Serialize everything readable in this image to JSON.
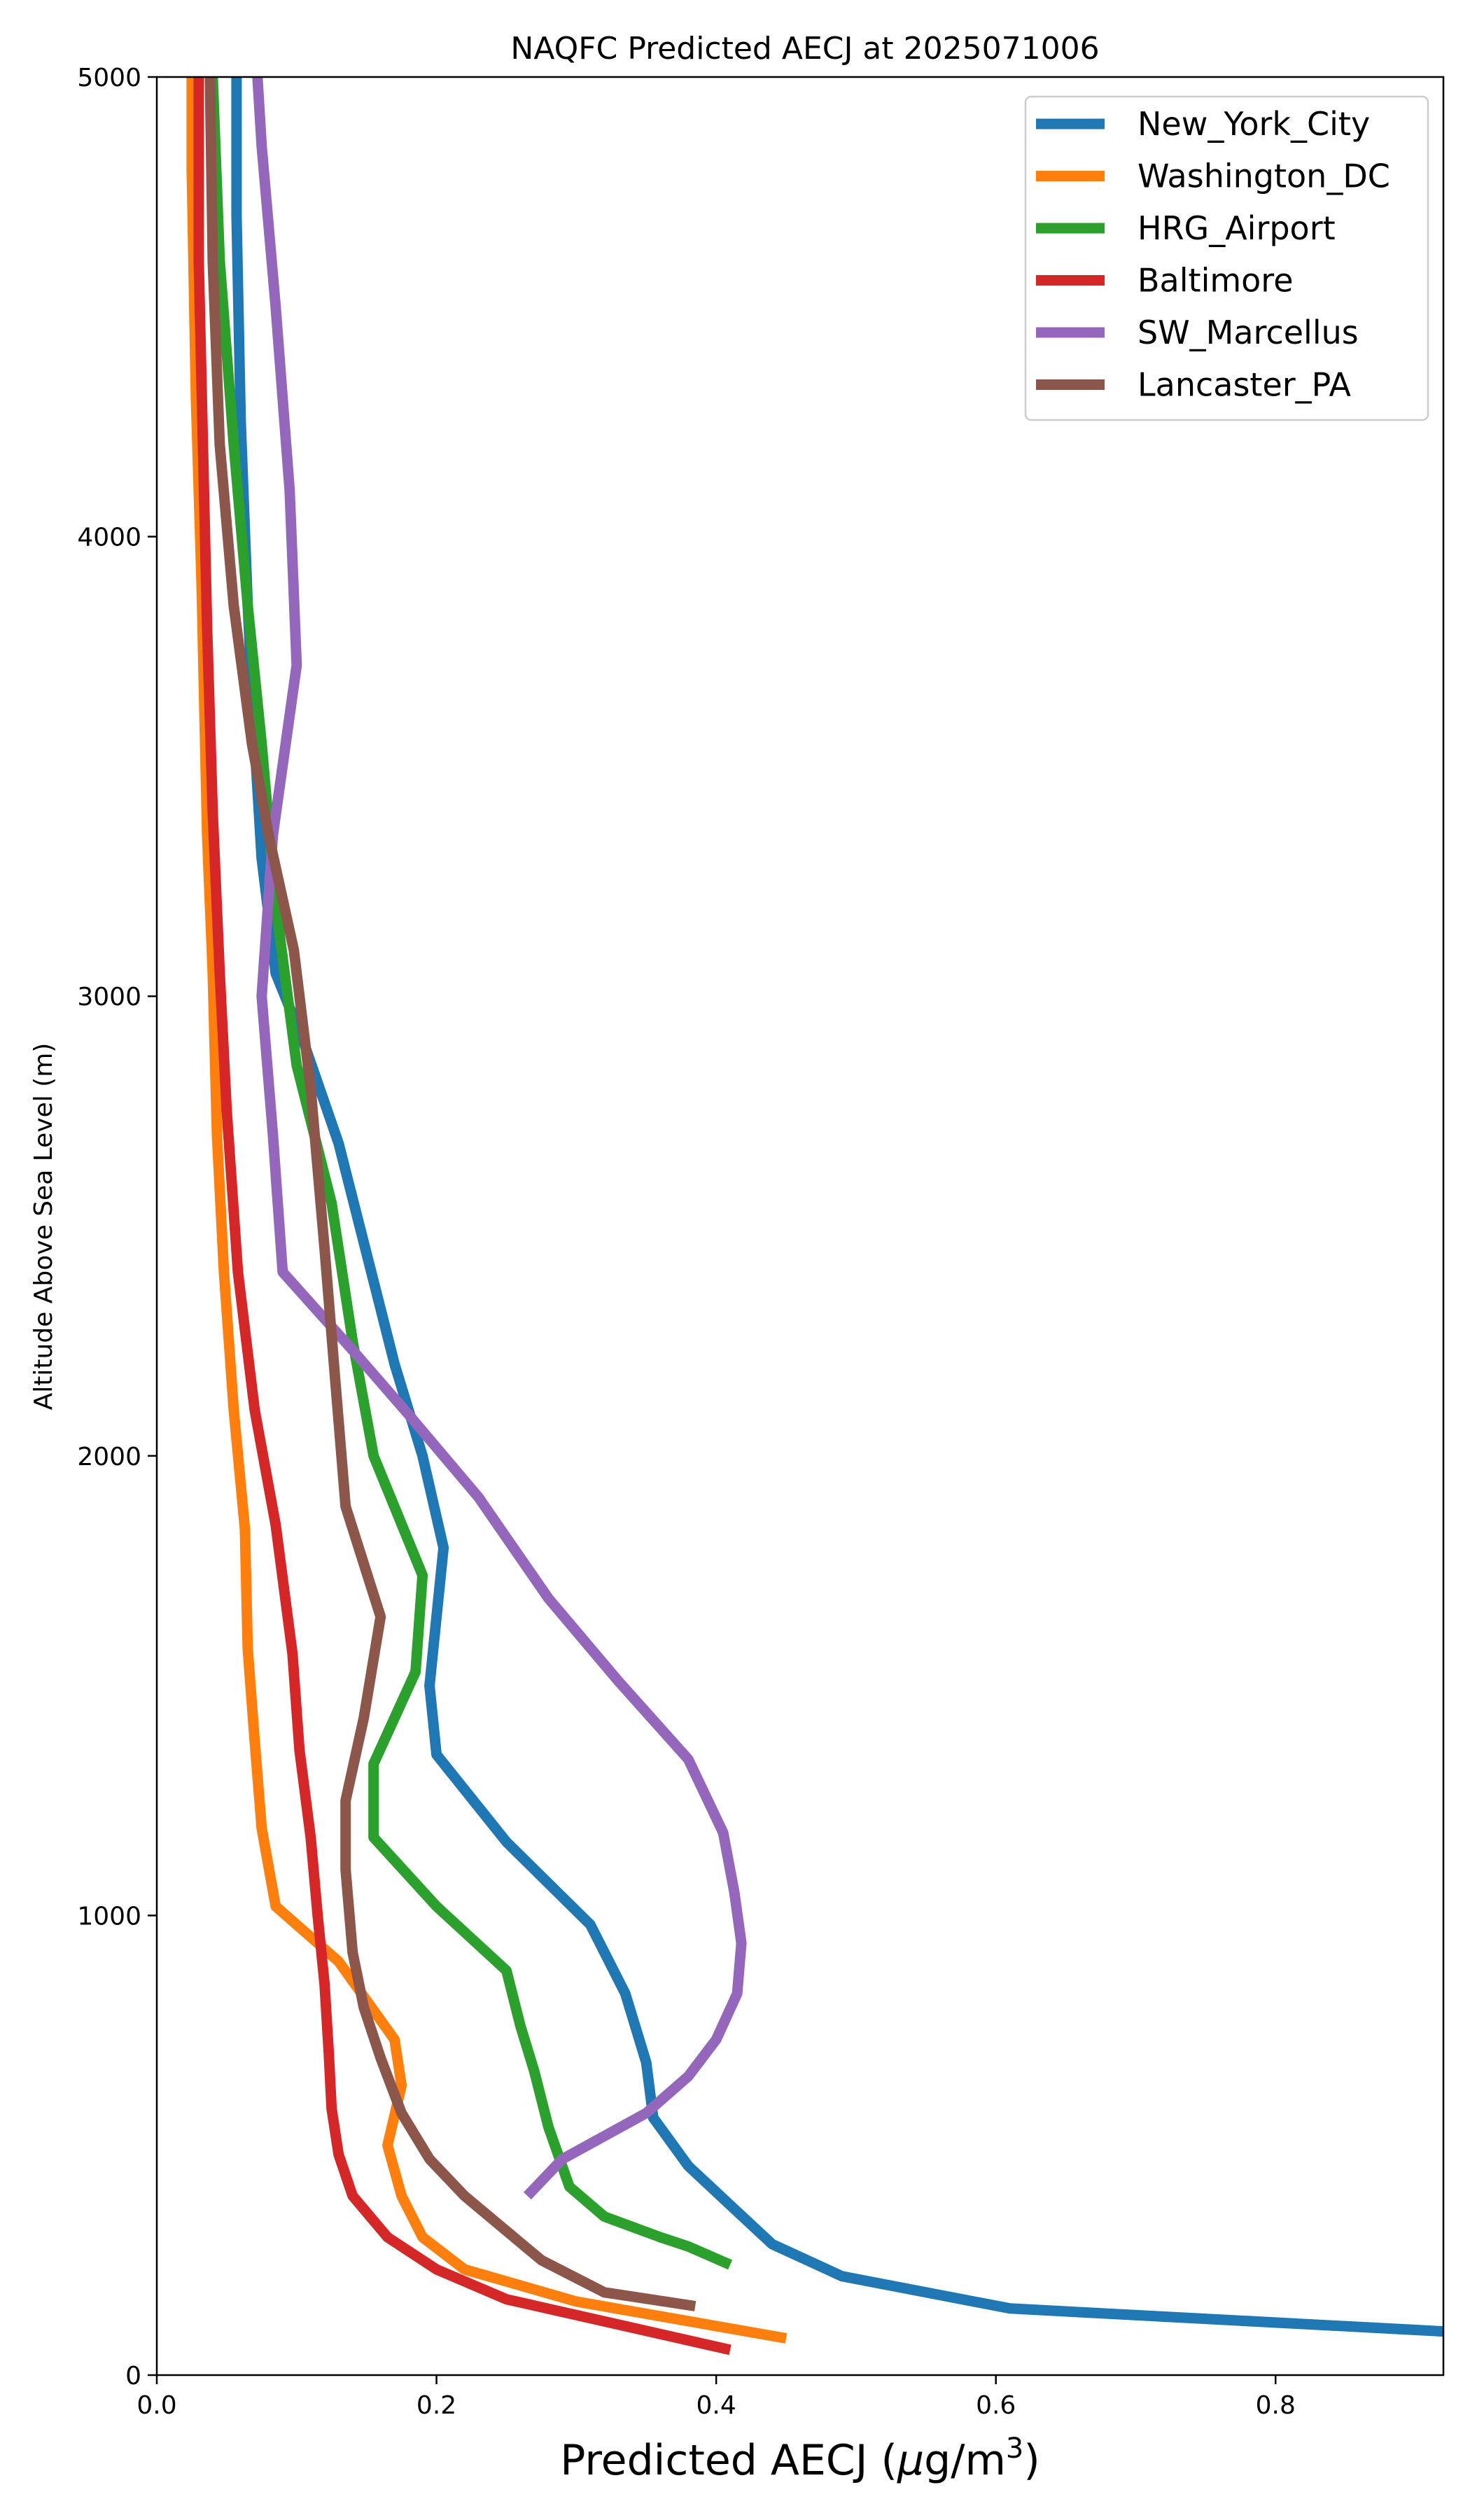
{
  "chart_data": {
    "type": "line",
    "title": "NAQFC Predicted AECJ at 2025071006",
    "xlabel": "Predicted AECJ (μg/m3)",
    "xlabel_parts": {
      "main": "Predicted AECJ (",
      "mu": "μ",
      "unit": "g/m",
      "exp": "3",
      "close": ")"
    },
    "ylabel": "Altitude Above Sea Level (m)",
    "xlim": [
      0,
      0.92
    ],
    "ylim": [
      0,
      5000
    ],
    "xticks": [
      "0.0",
      "0.2",
      "0.4",
      "0.6",
      "0.8"
    ],
    "xtick_values": [
      0,
      0.2,
      0.4,
      0.6,
      0.8
    ],
    "yticks": [
      "0",
      "1000",
      "2000",
      "3000",
      "4000",
      "5000"
    ],
    "ytick_values": [
      0,
      1000,
      2000,
      3000,
      4000,
      5000
    ],
    "grid": false,
    "legend_position": "top-right",
    "series": [
      {
        "name": "New_York_City",
        "color": "#1f77b4",
        "points": [
          [
            0.92,
            95
          ],
          [
            0.61,
            145
          ],
          [
            0.49,
            215
          ],
          [
            0.44,
            285
          ],
          [
            0.41,
            370
          ],
          [
            0.38,
            455
          ],
          [
            0.355,
            560
          ],
          [
            0.35,
            680
          ],
          [
            0.335,
            830
          ],
          [
            0.31,
            980
          ],
          [
            0.25,
            1160
          ],
          [
            0.2,
            1350
          ],
          [
            0.195,
            1500
          ],
          [
            0.205,
            1800
          ],
          [
            0.19,
            2000
          ],
          [
            0.17,
            2200
          ],
          [
            0.155,
            2380
          ],
          [
            0.13,
            2680
          ],
          [
            0.105,
            2900
          ],
          [
            0.085,
            3050
          ],
          [
            0.075,
            3300
          ],
          [
            0.07,
            3550
          ],
          [
            0.065,
            3850
          ],
          [
            0.06,
            4250
          ],
          [
            0.057,
            4700
          ],
          [
            0.057,
            5000
          ]
        ]
      },
      {
        "name": "Washington_DC",
        "color": "#ff7f0e",
        "points": [
          [
            0.45,
            80
          ],
          [
            0.3,
            160
          ],
          [
            0.22,
            230
          ],
          [
            0.19,
            300
          ],
          [
            0.175,
            390
          ],
          [
            0.165,
            500
          ],
          [
            0.175,
            630
          ],
          [
            0.17,
            730
          ],
          [
            0.13,
            900
          ],
          [
            0.085,
            1020
          ],
          [
            0.075,
            1190
          ],
          [
            0.07,
            1380
          ],
          [
            0.065,
            1580
          ],
          [
            0.063,
            1840
          ],
          [
            0.055,
            2100
          ],
          [
            0.048,
            2400
          ],
          [
            0.043,
            2700
          ],
          [
            0.04,
            3050
          ],
          [
            0.036,
            3350
          ],
          [
            0.032,
            3900
          ],
          [
            0.028,
            4300
          ],
          [
            0.025,
            4800
          ],
          [
            0.025,
            5000
          ]
        ]
      },
      {
        "name": "HRG_Airport",
        "color": "#2ca02c",
        "points": [
          [
            0.41,
            240
          ],
          [
            0.38,
            280
          ],
          [
            0.36,
            300
          ],
          [
            0.32,
            345
          ],
          [
            0.295,
            410
          ],
          [
            0.28,
            540
          ],
          [
            0.27,
            660
          ],
          [
            0.26,
            760
          ],
          [
            0.25,
            880
          ],
          [
            0.2,
            1020
          ],
          [
            0.155,
            1170
          ],
          [
            0.155,
            1330
          ],
          [
            0.185,
            1530
          ],
          [
            0.19,
            1740
          ],
          [
            0.155,
            2000
          ],
          [
            0.14,
            2250
          ],
          [
            0.125,
            2550
          ],
          [
            0.1,
            2850
          ],
          [
            0.085,
            3200
          ],
          [
            0.075,
            3550
          ],
          [
            0.065,
            3850
          ],
          [
            0.055,
            4200
          ],
          [
            0.045,
            4600
          ],
          [
            0.04,
            5000
          ]
        ]
      },
      {
        "name": "Baltimore",
        "color": "#d62728",
        "points": [
          [
            0.41,
            55
          ],
          [
            0.25,
            165
          ],
          [
            0.2,
            230
          ],
          [
            0.165,
            300
          ],
          [
            0.14,
            390
          ],
          [
            0.13,
            480
          ],
          [
            0.125,
            580
          ],
          [
            0.123,
            700
          ],
          [
            0.12,
            850
          ],
          [
            0.115,
            1000
          ],
          [
            0.11,
            1170
          ],
          [
            0.102,
            1360
          ],
          [
            0.097,
            1570
          ],
          [
            0.085,
            1850
          ],
          [
            0.07,
            2100
          ],
          [
            0.058,
            2400
          ],
          [
            0.05,
            2750
          ],
          [
            0.045,
            3050
          ],
          [
            0.04,
            3400
          ],
          [
            0.036,
            3800
          ],
          [
            0.033,
            4200
          ],
          [
            0.03,
            4600
          ],
          [
            0.03,
            5000
          ]
        ]
      },
      {
        "name": "SW_Marcellus",
        "color": "#9467bd",
        "points": [
          [
            0.265,
            390
          ],
          [
            0.29,
            470
          ],
          [
            0.35,
            570
          ],
          [
            0.38,
            650
          ],
          [
            0.4,
            730
          ],
          [
            0.415,
            830
          ],
          [
            0.418,
            940
          ],
          [
            0.413,
            1050
          ],
          [
            0.405,
            1180
          ],
          [
            0.38,
            1340
          ],
          [
            0.33,
            1510
          ],
          [
            0.28,
            1690
          ],
          [
            0.23,
            1910
          ],
          [
            0.18,
            2090
          ],
          [
            0.14,
            2230
          ],
          [
            0.09,
            2400
          ],
          [
            0.083,
            2700
          ],
          [
            0.075,
            3000
          ],
          [
            0.083,
            3350
          ],
          [
            0.1,
            3720
          ],
          [
            0.095,
            4100
          ],
          [
            0.085,
            4500
          ],
          [
            0.075,
            4850
          ],
          [
            0.072,
            5000
          ]
        ]
      },
      {
        "name": "Lancaster_PA",
        "color": "#8c564b",
        "points": [
          [
            0.385,
            150
          ],
          [
            0.32,
            180
          ],
          [
            0.275,
            250
          ],
          [
            0.22,
            390
          ],
          [
            0.195,
            470
          ],
          [
            0.175,
            570
          ],
          [
            0.16,
            690
          ],
          [
            0.148,
            800
          ],
          [
            0.14,
            920
          ],
          [
            0.135,
            1100
          ],
          [
            0.135,
            1250
          ],
          [
            0.148,
            1430
          ],
          [
            0.16,
            1650
          ],
          [
            0.135,
            1890
          ],
          [
            0.128,
            2150
          ],
          [
            0.12,
            2450
          ],
          [
            0.11,
            2800
          ],
          [
            0.098,
            3100
          ],
          [
            0.08,
            3350
          ],
          [
            0.068,
            3550
          ],
          [
            0.055,
            3850
          ],
          [
            0.045,
            4200
          ],
          [
            0.04,
            4600
          ],
          [
            0.038,
            5000
          ]
        ]
      }
    ]
  }
}
